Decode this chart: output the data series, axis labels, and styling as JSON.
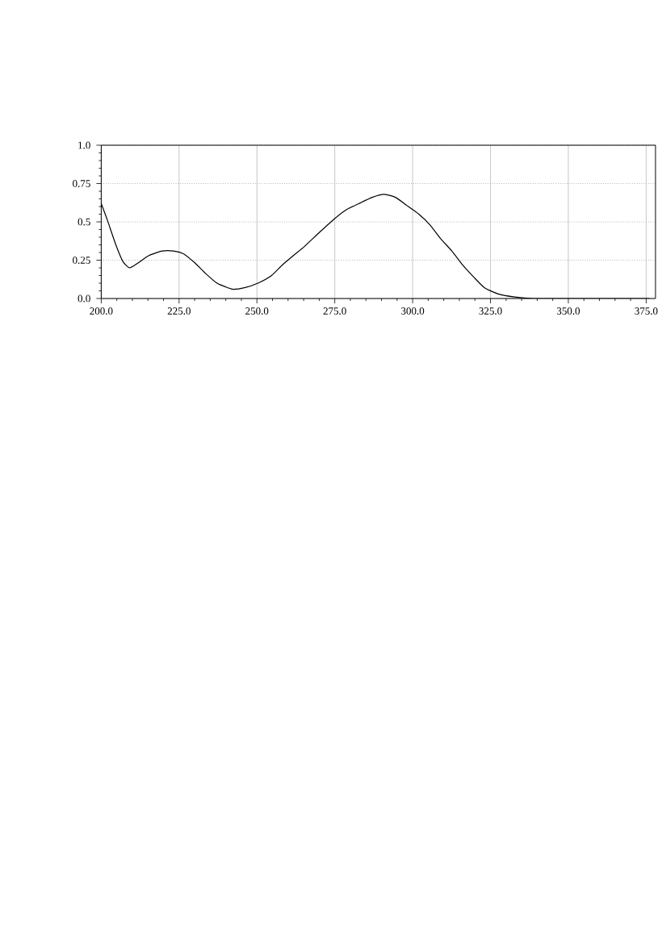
{
  "chart_data": {
    "type": "line",
    "x": [
      200,
      202,
      204.7,
      207,
      209.1,
      211.7,
      215.3,
      219.6,
      223.2,
      226.6,
      230.2,
      233.7,
      237.2,
      240.7,
      242.4,
      246,
      250.3,
      254.7,
      258.2,
      261.7,
      265.3,
      270,
      274.9,
      278.8,
      282.8,
      287,
      290.7,
      294.5,
      298.6,
      302,
      305.6,
      309,
      312.6,
      316,
      319.6,
      323.1,
      327.5,
      332.8,
      338.9,
      350,
      365,
      376
    ],
    "values": [
      0.62,
      0.51,
      0.35,
      0.24,
      0.2,
      0.23,
      0.28,
      0.31,
      0.31,
      0.29,
      0.23,
      0.16,
      0.1,
      0.07,
      0.06,
      0.07,
      0.1,
      0.15,
      0.22,
      0.28,
      0.34,
      0.43,
      0.52,
      0.58,
      0.62,
      0.66,
      0.68,
      0.66,
      0.6,
      0.55,
      0.48,
      0.39,
      0.31,
      0.22,
      0.14,
      0.07,
      0.03,
      0.01,
      0,
      0,
      0,
      0
    ],
    "color": "#000000",
    "xlim": [
      200,
      378
    ],
    "ylim": [
      0,
      1
    ],
    "xticks": [
      {
        "value": 200,
        "label": "200.0"
      },
      {
        "value": 225,
        "label": "225.0"
      },
      {
        "value": 250,
        "label": "250.0"
      },
      {
        "value": 275,
        "label": "275.0"
      },
      {
        "value": 300,
        "label": "300.0"
      },
      {
        "value": 325,
        "label": "325.0"
      },
      {
        "value": 350,
        "label": "350.0"
      },
      {
        "value": 375,
        "label": "375.0"
      }
    ],
    "yticks": [
      {
        "value": 0,
        "label": "0.0"
      },
      0.25,
      0.5,
      0.75,
      {
        "value": 1,
        "label": "1.0"
      }
    ],
    "grid": true
  }
}
